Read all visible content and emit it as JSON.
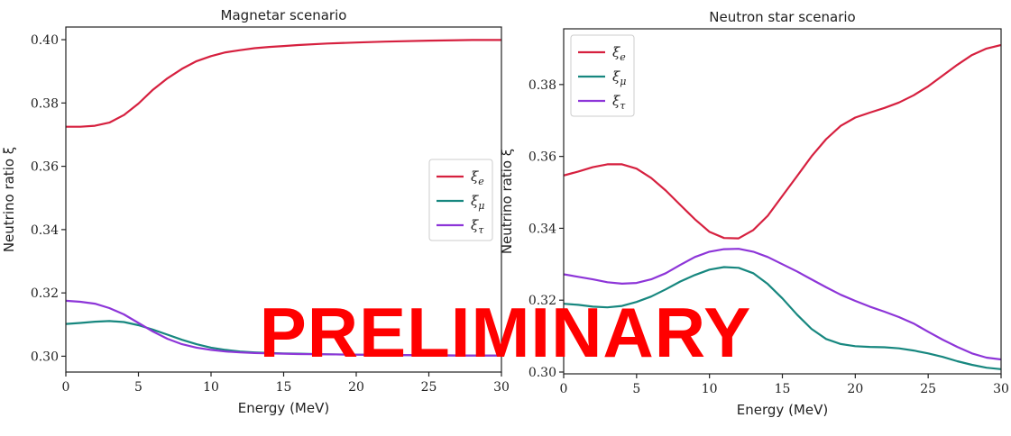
{
  "watermark": "PRELIMINARY",
  "colors": {
    "xi_e": "#d6203f",
    "xi_mu": "#17877f",
    "xi_tau": "#8d35d8"
  },
  "chart_data": [
    {
      "type": "line",
      "title": "Magnetar scenario",
      "xlabel": "Energy (MeV)",
      "ylabel": "Neutrino ratio ξ",
      "xlim": [
        0,
        30
      ],
      "ylim": [
        0.295,
        0.404
      ],
      "xticks": [
        0,
        5,
        10,
        15,
        20,
        25,
        30
      ],
      "xtick_labels": [
        "0",
        "5",
        "10",
        "15",
        "20",
        "25",
        "30"
      ],
      "yticks": [
        0.3,
        0.32,
        0.34,
        0.36,
        0.38,
        0.4
      ],
      "ytick_labels": [
        "0.30",
        "0.32",
        "0.34",
        "0.36",
        "0.38",
        "0.40"
      ],
      "legend_position": "center-right",
      "series": [
        {
          "name": "ξe",
          "base": "ξ",
          "sub": "e",
          "color_key": "xi_e",
          "x": [
            0,
            1,
            2,
            3,
            4,
            5,
            6,
            7,
            8,
            9,
            10,
            11,
            12,
            13,
            14,
            15,
            16,
            18,
            20,
            22,
            25,
            28,
            30
          ],
          "y": [
            0.3725,
            0.3725,
            0.3728,
            0.3738,
            0.3762,
            0.3798,
            0.3842,
            0.3878,
            0.3908,
            0.3932,
            0.3948,
            0.396,
            0.3967,
            0.3973,
            0.3977,
            0.398,
            0.3983,
            0.3988,
            0.3991,
            0.3994,
            0.3997,
            0.3999,
            0.3999
          ]
        },
        {
          "name": "ξμ",
          "base": "ξ",
          "sub": "μ",
          "color_key": "xi_mu",
          "x": [
            0,
            1,
            2,
            3,
            4,
            5,
            6,
            7,
            8,
            9,
            10,
            11,
            12,
            13,
            14,
            15,
            16,
            18,
            20,
            22,
            25,
            28,
            30
          ],
          "y": [
            0.3102,
            0.3105,
            0.3109,
            0.3111,
            0.3108,
            0.3098,
            0.3084,
            0.3068,
            0.3052,
            0.3038,
            0.3027,
            0.302,
            0.3015,
            0.3012,
            0.301,
            0.3009,
            0.3008,
            0.3006,
            0.3005,
            0.3004,
            0.3003,
            0.3002,
            0.3002
          ]
        },
        {
          "name": "ξτ",
          "base": "ξ",
          "sub": "τ",
          "color_key": "xi_tau",
          "x": [
            0,
            1,
            2,
            3,
            4,
            5,
            6,
            7,
            8,
            9,
            10,
            11,
            12,
            13,
            14,
            15,
            16,
            18,
            20,
            22,
            25,
            28,
            30
          ],
          "y": [
            0.3175,
            0.3172,
            0.3166,
            0.3152,
            0.3132,
            0.3105,
            0.3078,
            0.3055,
            0.3038,
            0.3027,
            0.302,
            0.3015,
            0.3012,
            0.301,
            0.3009,
            0.3008,
            0.3007,
            0.3006,
            0.3005,
            0.3004,
            0.3003,
            0.3002,
            0.3002
          ]
        }
      ]
    },
    {
      "type": "line",
      "title": "Neutron star scenario",
      "xlabel": "Energy (MeV)",
      "ylabel": "Neutrino ratio ξ",
      "xlim": [
        0,
        30
      ],
      "ylim": [
        0.2995,
        0.3955
      ],
      "xticks": [
        0,
        5,
        10,
        15,
        20,
        25,
        30
      ],
      "xtick_labels": [
        "0",
        "5",
        "10",
        "15",
        "20",
        "25",
        "30"
      ],
      "yticks": [
        0.3,
        0.32,
        0.34,
        0.36,
        0.38
      ],
      "ytick_labels": [
        "0.30",
        "0.32",
        "0.34",
        "0.36",
        "0.38"
      ],
      "legend_position": "top-left",
      "series": [
        {
          "name": "ξe",
          "base": "ξ",
          "sub": "e",
          "color_key": "xi_e",
          "x": [
            0,
            1,
            2,
            3,
            4,
            5,
            6,
            7,
            8,
            9,
            10,
            11,
            12,
            13,
            14,
            15,
            16,
            17,
            18,
            19,
            20,
            21,
            22,
            23,
            24,
            25,
            26,
            27,
            28,
            29,
            30
          ],
          "y": [
            0.3547,
            0.3558,
            0.357,
            0.3578,
            0.3578,
            0.3566,
            0.354,
            0.3505,
            0.3465,
            0.3425,
            0.339,
            0.3373,
            0.3372,
            0.3395,
            0.3435,
            0.349,
            0.3545,
            0.36,
            0.3648,
            0.3685,
            0.3708,
            0.3722,
            0.3735,
            0.375,
            0.377,
            0.3795,
            0.3825,
            0.3855,
            0.3882,
            0.39,
            0.391
          ]
        },
        {
          "name": "ξμ",
          "base": "ξ",
          "sub": "μ",
          "color_key": "xi_mu",
          "x": [
            0,
            1,
            2,
            3,
            4,
            5,
            6,
            7,
            8,
            9,
            10,
            11,
            12,
            13,
            14,
            15,
            16,
            17,
            18,
            19,
            20,
            21,
            22,
            23,
            24,
            25,
            26,
            27,
            28,
            29,
            30
          ],
          "y": [
            0.319,
            0.3187,
            0.3182,
            0.318,
            0.3184,
            0.3195,
            0.321,
            0.323,
            0.3252,
            0.327,
            0.3285,
            0.3292,
            0.329,
            0.3275,
            0.3245,
            0.3205,
            0.316,
            0.312,
            0.3092,
            0.3078,
            0.3072,
            0.307,
            0.3069,
            0.3066,
            0.306,
            0.3052,
            0.3042,
            0.303,
            0.302,
            0.3012,
            0.3008
          ]
        },
        {
          "name": "ξτ",
          "base": "ξ",
          "sub": "τ",
          "color_key": "xi_tau",
          "x": [
            0,
            1,
            2,
            3,
            4,
            5,
            6,
            7,
            8,
            9,
            10,
            11,
            12,
            13,
            14,
            15,
            16,
            17,
            18,
            19,
            20,
            21,
            22,
            23,
            24,
            25,
            26,
            27,
            28,
            29,
            30
          ],
          "y": [
            0.3272,
            0.3265,
            0.3258,
            0.325,
            0.3246,
            0.3248,
            0.3258,
            0.3275,
            0.3298,
            0.332,
            0.3335,
            0.3342,
            0.3343,
            0.3335,
            0.332,
            0.33,
            0.328,
            0.3258,
            0.3236,
            0.3215,
            0.3198,
            0.3182,
            0.3168,
            0.3153,
            0.3135,
            0.3112,
            0.309,
            0.307,
            0.3052,
            0.304,
            0.3035
          ]
        }
      ]
    }
  ]
}
